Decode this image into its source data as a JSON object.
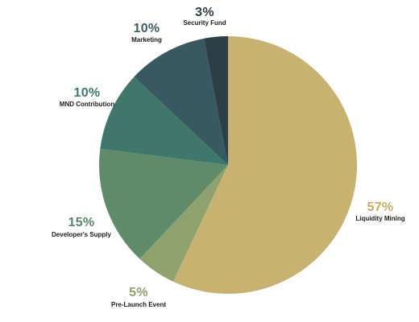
{
  "chart_data": {
    "type": "pie",
    "title": "",
    "slices": [
      {
        "label": "Liquidity Mining",
        "value": 57,
        "display": "57%",
        "color": "#c8b272",
        "label_color": "#c3ad65"
      },
      {
        "label": "Pre-Launch Event",
        "value": 5,
        "display": "5%",
        "color": "#8ea26f",
        "label_color": "#8ea26f"
      },
      {
        "label": "Developer's Supply",
        "value": 15,
        "display": "15%",
        "color": "#608b6b",
        "label_color": "#5a8666"
      },
      {
        "label": "MND Contribution",
        "value": 10,
        "display": "10%",
        "color": "#40776b",
        "label_color": "#40776b"
      },
      {
        "label": "Marketing",
        "value": 10,
        "display": "10%",
        "color": "#37595f",
        "label_color": "#3b5f65"
      },
      {
        "label": "Security Fund",
        "value": 3,
        "display": "3%",
        "color": "#2c3f47",
        "label_color": "#2c3f47"
      }
    ]
  }
}
